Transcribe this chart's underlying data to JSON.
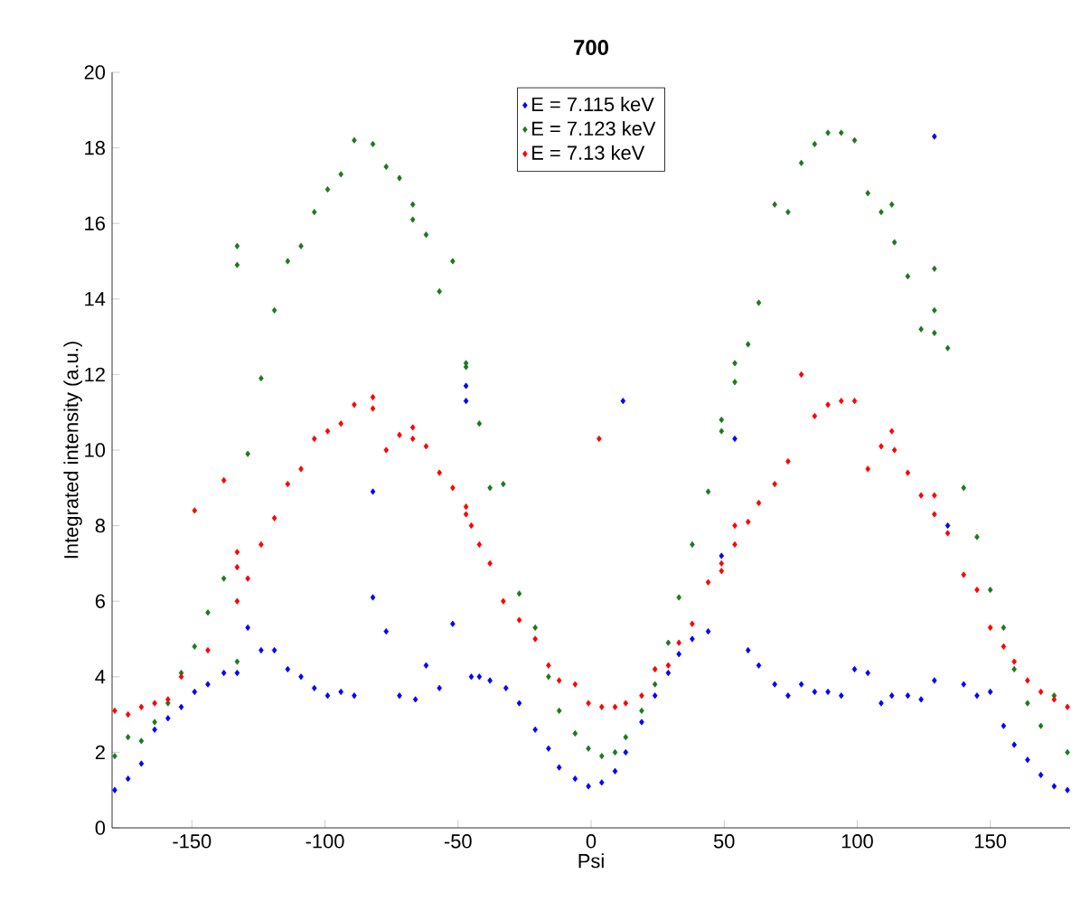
{
  "chart_data": {
    "type": "scatter",
    "title": "700",
    "xlabel": "Psi",
    "ylabel": "Integrated intensity (a.u.)",
    "xlim": [
      -180,
      180
    ],
    "ylim": [
      0,
      20
    ],
    "xticks": [
      -150,
      -100,
      -50,
      0,
      50,
      100,
      150
    ],
    "yticks": [
      0,
      2,
      4,
      6,
      8,
      10,
      12,
      14,
      16,
      18,
      20
    ],
    "legend": "top",
    "marker": "diamond",
    "grid": false,
    "series": [
      {
        "name": "E = 7.115 keV",
        "color": "#0000ff",
        "x": [
          -179,
          -174,
          -169,
          -164,
          -159,
          -154,
          -149,
          -144,
          -138,
          -133,
          -129,
          -124,
          -119,
          -114,
          -109,
          -104,
          -99,
          -94,
          -89,
          -82,
          -82,
          -77,
          -72,
          -66,
          -62,
          -57,
          -52,
          -47,
          -47,
          -45,
          -42,
          -38,
          -32,
          -27,
          -21,
          -16,
          -12,
          -6,
          -1,
          4,
          9,
          13,
          12,
          19,
          24,
          29,
          33,
          38,
          44,
          49,
          54,
          59,
          63,
          69,
          74,
          79,
          84,
          89,
          94,
          99,
          104,
          109,
          113,
          119,
          124,
          129,
          129,
          134,
          140,
          145,
          150,
          155,
          159,
          164,
          169,
          174,
          179
        ],
        "values": [
          1.0,
          1.3,
          1.7,
          2.6,
          2.9,
          3.2,
          3.6,
          3.8,
          4.1,
          4.1,
          5.3,
          4.7,
          4.7,
          4.2,
          4.0,
          3.7,
          3.5,
          3.6,
          3.5,
          8.9,
          6.1,
          5.2,
          3.5,
          3.4,
          4.3,
          3.7,
          5.4,
          11.7,
          11.3,
          4.0,
          4.0,
          3.9,
          3.7,
          3.3,
          2.6,
          2.1,
          1.6,
          1.3,
          1.1,
          1.2,
          1.5,
          2.0,
          11.3,
          2.8,
          3.5,
          4.1,
          4.6,
          5.0,
          5.2,
          7.2,
          10.3,
          4.7,
          4.3,
          3.8,
          3.5,
          3.8,
          3.6,
          3.6,
          3.5,
          4.2,
          4.1,
          3.3,
          3.5,
          3.5,
          3.4,
          3.9,
          18.3,
          8.0,
          3.8,
          3.5,
          3.6,
          2.7,
          2.2,
          1.8,
          1.4,
          1.1,
          1.0
        ]
      },
      {
        "name": "E = 7.123 keV",
        "color": "#1a7a1a",
        "x": [
          -179,
          -174,
          -169,
          -164,
          -159,
          -154,
          -149,
          -144,
          -138,
          -133,
          -133,
          -133,
          -129,
          -124,
          -119,
          -114,
          -109,
          -104,
          -99,
          -94,
          -89,
          -82,
          -77,
          -72,
          -67,
          -67,
          -62,
          -57,
          -52,
          -47,
          -47,
          -42,
          -38,
          -33,
          -27,
          -21,
          -16,
          -12,
          -6,
          -1,
          4,
          9,
          13,
          19,
          24,
          29,
          33,
          38,
          44,
          49,
          49,
          54,
          54,
          59,
          63,
          69,
          74,
          79,
          84,
          89,
          94,
          99,
          104,
          109,
          113,
          114,
          119,
          124,
          129,
          129,
          129,
          134,
          140,
          145,
          150,
          155,
          159,
          164,
          169,
          174,
          179
        ],
        "values": [
          1.9,
          2.4,
          2.3,
          2.8,
          3.3,
          4.1,
          4.8,
          5.7,
          6.6,
          15.4,
          14.9,
          4.4,
          9.9,
          11.9,
          13.7,
          15.0,
          15.4,
          16.3,
          16.9,
          17.3,
          18.2,
          18.1,
          17.5,
          17.2,
          16.5,
          16.1,
          15.7,
          14.2,
          15.0,
          12.3,
          12.2,
          10.7,
          9.0,
          9.1,
          6.2,
          5.3,
          4.0,
          3.1,
          2.5,
          2.1,
          1.9,
          2.0,
          2.4,
          3.1,
          3.8,
          4.9,
          6.1,
          7.5,
          8.9,
          10.8,
          10.5,
          12.3,
          11.8,
          12.8,
          13.9,
          16.5,
          16.3,
          17.6,
          18.1,
          18.4,
          18.4,
          18.2,
          16.8,
          16.3,
          16.5,
          15.5,
          14.6,
          13.2,
          13.1,
          13.7,
          14.8,
          12.7,
          9.0,
          7.7,
          6.3,
          5.3,
          4.2,
          3.3,
          2.7,
          3.5,
          2.0
        ]
      },
      {
        "name": "E = 7.13 keV",
        "color": "#ff0000",
        "x": [
          -179,
          -174,
          -169,
          -164,
          -159,
          -154,
          -149,
          -144,
          -138,
          -133,
          -133,
          -133,
          -129,
          -124,
          -119,
          -114,
          -109,
          -104,
          -99,
          -94,
          -89,
          -82,
          -82,
          -77,
          -72,
          -67,
          -67,
          -62,
          -57,
          -52,
          -47,
          -47,
          -45,
          -42,
          -38,
          -33,
          -27,
          -21,
          -16,
          -12,
          -6,
          -1,
          3,
          4,
          9,
          13,
          19,
          24,
          29,
          33,
          38,
          44,
          49,
          49,
          54,
          54,
          59,
          63,
          69,
          74,
          79,
          84,
          89,
          94,
          99,
          104,
          109,
          113,
          114,
          119,
          124,
          129,
          129,
          134,
          140,
          145,
          150,
          155,
          159,
          164,
          169,
          174,
          179
        ],
        "values": [
          3.1,
          3.0,
          3.2,
          3.3,
          3.4,
          4.0,
          8.4,
          4.7,
          9.2,
          7.3,
          6.9,
          6.0,
          6.6,
          7.5,
          8.2,
          9.1,
          9.5,
          10.3,
          10.5,
          10.7,
          11.2,
          11.4,
          11.1,
          10.0,
          10.4,
          10.6,
          10.3,
          10.1,
          9.4,
          9.0,
          8.5,
          8.3,
          8.0,
          7.5,
          7.0,
          6.0,
          5.5,
          5.0,
          4.3,
          3.9,
          3.8,
          3.3,
          10.3,
          3.2,
          3.2,
          3.3,
          3.5,
          4.2,
          4.3,
          4.9,
          5.4,
          6.5,
          7.0,
          6.8,
          7.5,
          8.0,
          8.1,
          8.6,
          9.1,
          9.7,
          12.0,
          10.9,
          11.2,
          11.3,
          11.3,
          9.5,
          10.1,
          10.5,
          10.0,
          9.4,
          8.8,
          8.8,
          8.3,
          7.8,
          6.7,
          6.3,
          5.3,
          4.8,
          4.4,
          3.9,
          3.6,
          3.4,
          3.2
        ]
      }
    ]
  }
}
